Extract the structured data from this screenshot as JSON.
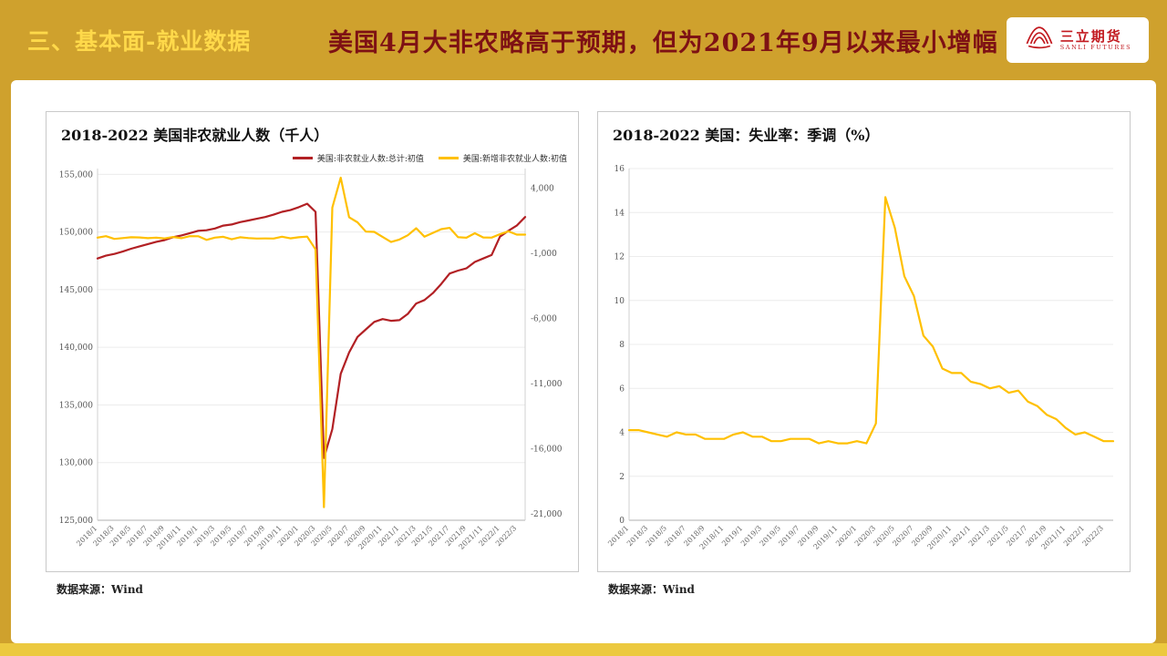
{
  "header": {
    "section_label": "三、基本面-就业数据",
    "title": "美国4月大非农略高于预期，但为2021年9月以来最小增幅",
    "logo": {
      "name_cn": "三立期货",
      "name_en": "SANLI FUTURES"
    }
  },
  "colors": {
    "frame_gold": "#CFA12D",
    "bottom_strip_gold": "#ECC93F",
    "section_label_yellow": "#FFD94A",
    "title_dark_red": "#7E1114",
    "logo_red": "#C2191F",
    "line_red": "#B22024",
    "line_yellow": "#FFC000"
  },
  "chart_data": [
    {
      "type": "line",
      "title": "2018-2022 美国非农就业人数（千人）",
      "source": "数据来源：Wind",
      "grid": true,
      "legend_position": "top-right",
      "x": [
        "2018/1",
        "2018/2",
        "2018/3",
        "2018/4",
        "2018/5",
        "2018/6",
        "2018/7",
        "2018/8",
        "2018/9",
        "2018/10",
        "2018/11",
        "2018/12",
        "2019/1",
        "2019/2",
        "2019/3",
        "2019/4",
        "2019/5",
        "2019/6",
        "2019/7",
        "2019/8",
        "2019/9",
        "2019/10",
        "2019/11",
        "2019/12",
        "2020/1",
        "2020/2",
        "2020/3",
        "2020/4",
        "2020/5",
        "2020/6",
        "2020/7",
        "2020/8",
        "2020/9",
        "2020/10",
        "2020/11",
        "2020/12",
        "2021/1",
        "2021/2",
        "2021/3",
        "2021/4",
        "2021/5",
        "2021/6",
        "2021/7",
        "2021/8",
        "2021/9",
        "2021/10",
        "2021/11",
        "2021/12",
        "2022/1",
        "2022/2",
        "2022/3",
        "2022/4"
      ],
      "x_tick_every": 2,
      "left_axis": {
        "min": 125000,
        "max": 155500,
        "ticks": [
          125000,
          130000,
          135000,
          140000,
          145000,
          150000,
          155000
        ],
        "format": "thousands"
      },
      "right_axis": {
        "min": -21500,
        "max": 5500,
        "ticks": [
          4000,
          -1000,
          -6000,
          -11000,
          -16000,
          -21000
        ],
        "format": "thousands"
      },
      "series": [
        {
          "name": "美国:非农就业人数:总计:初值",
          "axis": "left",
          "color": "#B22024",
          "values": [
            147700,
            147950,
            148100,
            148300,
            148550,
            148750,
            148950,
            149150,
            149300,
            149550,
            149700,
            149900,
            150100,
            150150,
            150300,
            150550,
            150650,
            150850,
            151000,
            151150,
            151300,
            151500,
            151750,
            151900,
            152150,
            152450,
            151750,
            130400,
            132900,
            137700,
            139550,
            140900,
            141550,
            142200,
            142450,
            142300,
            142350,
            142900,
            143800,
            144100,
            144700,
            145500,
            146400,
            146650,
            146850,
            147400,
            147700,
            148000,
            149600,
            150100,
            150550,
            151300
          ]
        },
        {
          "name": "美国:新增非农就业人数:初值",
          "axis": "right",
          "color": "#FFC000",
          "values": [
            200,
            313,
            103,
            164,
            223,
            213,
            157,
            201,
            134,
            250,
            155,
            312,
            304,
            20,
            196,
            263,
            75,
            224,
            164,
            130,
            136,
            128,
            266,
            145,
            225,
            273,
            -701,
            -20500,
            2509,
            4800,
            1763,
            1371,
            661,
            638,
            245,
            -140,
            49,
            379,
            916,
            266,
            559,
            850,
            943,
            235,
            194,
            531,
            210,
            199,
            467,
            678,
            431,
            428
          ]
        }
      ]
    },
    {
      "type": "line",
      "title": "2018-2022 美国：失业率：季调（%）",
      "source": "数据来源：Wind",
      "grid": true,
      "x": [
        "2018/1",
        "2018/2",
        "2018/3",
        "2018/4",
        "2018/5",
        "2018/6",
        "2018/7",
        "2018/8",
        "2018/9",
        "2018/10",
        "2018/11",
        "2018/12",
        "2019/1",
        "2019/2",
        "2019/3",
        "2019/4",
        "2019/5",
        "2019/6",
        "2019/7",
        "2019/8",
        "2019/9",
        "2019/10",
        "2019/11",
        "2019/12",
        "2020/1",
        "2020/2",
        "2020/3",
        "2020/4",
        "2020/5",
        "2020/6",
        "2020/7",
        "2020/8",
        "2020/9",
        "2020/10",
        "2020/11",
        "2020/12",
        "2021/1",
        "2021/2",
        "2021/3",
        "2021/4",
        "2021/5",
        "2021/6",
        "2021/7",
        "2021/8",
        "2021/9",
        "2021/10",
        "2021/11",
        "2021/12",
        "2022/1",
        "2022/2",
        "2022/3",
        "2022/4"
      ],
      "x_tick_every": 2,
      "left_axis": {
        "min": 0,
        "max": 16,
        "ticks": [
          0,
          2,
          4,
          6,
          8,
          10,
          12,
          14,
          16
        ],
        "format": "plain"
      },
      "series": [
        {
          "axis": "left",
          "color": "#FFC000",
          "values": [
            4.1,
            4.1,
            4.0,
            3.9,
            3.8,
            4.0,
            3.9,
            3.9,
            3.7,
            3.7,
            3.7,
            3.9,
            4.0,
            3.8,
            3.8,
            3.6,
            3.6,
            3.7,
            3.7,
            3.7,
            3.5,
            3.6,
            3.5,
            3.5,
            3.6,
            3.5,
            4.4,
            14.7,
            13.3,
            11.1,
            10.2,
            8.4,
            7.9,
            6.9,
            6.7,
            6.7,
            6.3,
            6.2,
            6.0,
            6.1,
            5.8,
            5.9,
            5.4,
            5.2,
            4.8,
            4.6,
            4.2,
            3.9,
            4.0,
            3.8,
            3.6,
            3.6
          ]
        }
      ]
    }
  ]
}
